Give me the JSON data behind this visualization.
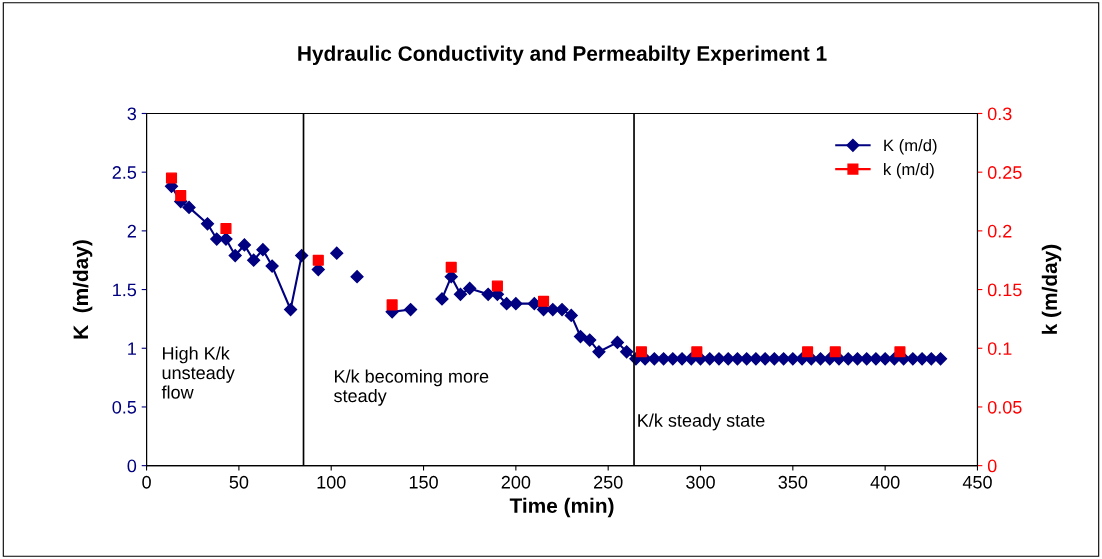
{
  "chart_data": {
    "type": "line",
    "title": "Hydraulic Conductivity and Permeabilty Experiment 1",
    "xlabel": "Time (min)",
    "ylabel": "K  (m/day)",
    "y2label": "k (m/day)",
    "xlim": [
      0,
      450
    ],
    "xticks": [
      0,
      50,
      100,
      150,
      200,
      250,
      300,
      350,
      400,
      450
    ],
    "ylim": [
      0,
      3
    ],
    "yticks": [
      0,
      0.5,
      1,
      1.5,
      2,
      2.5,
      3
    ],
    "y2lim": [
      0,
      0.3
    ],
    "y2ticks": [
      0,
      0.05,
      0.1,
      0.15,
      0.2,
      0.25,
      0.3
    ],
    "grid": false,
    "legend": "top right",
    "series": [
      {
        "name": "K (m/d)",
        "color": "#000080",
        "marker": "diamond",
        "line_style": "solid",
        "x": [
          13.5,
          18.5,
          23,
          33,
          38,
          43,
          48,
          53,
          58,
          63,
          68,
          78,
          84,
          88,
          93,
          98,
          103,
          108,
          114,
          123,
          133,
          143,
          150,
          160,
          165,
          170,
          175,
          185,
          190,
          195,
          200,
          210,
          215,
          220,
          225,
          230,
          235,
          240,
          245,
          255,
          260,
          265,
          270,
          275,
          280,
          285,
          290,
          295,
          300,
          305,
          310,
          315,
          320,
          325,
          330,
          335,
          340,
          345,
          350,
          355,
          360,
          365,
          370,
          375,
          380,
          385,
          390,
          395,
          400,
          405,
          410,
          415,
          420,
          425,
          430
        ],
        "values": [
          2.38,
          2.25,
          2.2,
          2.06,
          1.93,
          1.93,
          1.79,
          1.88,
          1.75,
          1.84,
          1.7,
          1.33,
          1.79,
          null,
          1.67,
          null,
          1.81,
          null,
          1.61,
          null,
          1.31,
          1.33,
          null,
          1.42,
          1.61,
          1.46,
          1.51,
          1.46,
          1.46,
          1.38,
          1.38,
          1.38,
          1.33,
          1.33,
          1.33,
          1.28,
          1.1,
          1.07,
          0.97,
          1.05,
          0.97,
          0.91,
          0.91,
          0.91,
          0.91,
          0.91,
          0.91,
          0.91,
          0.91,
          0.91,
          0.91,
          0.91,
          0.91,
          0.91,
          0.91,
          0.91,
          0.91,
          0.91,
          0.91,
          0.91,
          0.91,
          0.91,
          0.91,
          0.91,
          0.91,
          0.91,
          0.91,
          0.91,
          0.91,
          0.91,
          0.91,
          0.91,
          0.91,
          0.91,
          0.91
        ]
      },
      {
        "name": "k (m/d)",
        "type": "scatter",
        "axis": "y2",
        "color": "#ff0000",
        "marker": "square",
        "x": [
          13.5,
          18.5,
          43,
          93,
          133,
          165,
          190,
          215,
          268,
          298,
          358,
          373,
          408
        ],
        "values": [
          0.245,
          0.23,
          0.202,
          0.175,
          0.137,
          0.169,
          0.153,
          0.14,
          0.097,
          0.097,
          0.097,
          0.097,
          0.097
        ]
      }
    ],
    "ref_lines": [
      {
        "axis": "x",
        "value": 85,
        "color": "#000000",
        "line_style": "solid"
      },
      {
        "axis": "x",
        "value": 264,
        "color": "#000000",
        "line_style": "solid"
      }
    ],
    "annotations": [
      "High K/k\nunsteady\nflow",
      "K/k becoming more\nsteady",
      "K/k steady state"
    ]
  }
}
